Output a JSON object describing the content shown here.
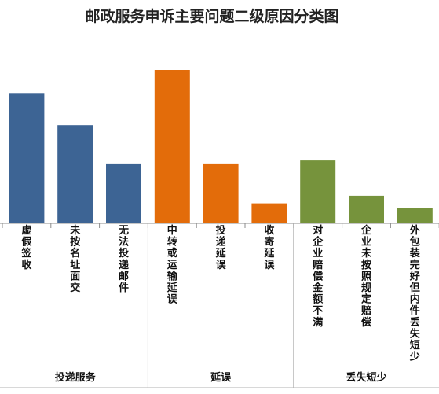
{
  "chart_data": {
    "type": "bar",
    "title": "邮政服务申诉主要问题二级原因分类图",
    "xlabel": "",
    "ylabel": "",
    "ylim": [
      0,
      100
    ],
    "grid": false,
    "legend": "none",
    "groups": [
      {
        "name": "投递服务",
        "color": "#3D6494",
        "categories": [
          "虚假签收",
          "未按名址面交",
          "无法投递邮件"
        ],
        "values": [
          85,
          64,
          39
        ]
      },
      {
        "name": "延误",
        "color": "#E36C0A",
        "categories": [
          "中转或运输延误",
          "投递延误",
          "收寄延误"
        ],
        "values": [
          100,
          39,
          13
        ]
      },
      {
        "name": "丢失短少",
        "color": "#76933C",
        "categories": [
          "对企业赔偿金额不满",
          "企业未按照规定赔偿",
          "外包装完好但内件丢失短少"
        ],
        "values": [
          41,
          18,
          10
        ]
      }
    ]
  }
}
